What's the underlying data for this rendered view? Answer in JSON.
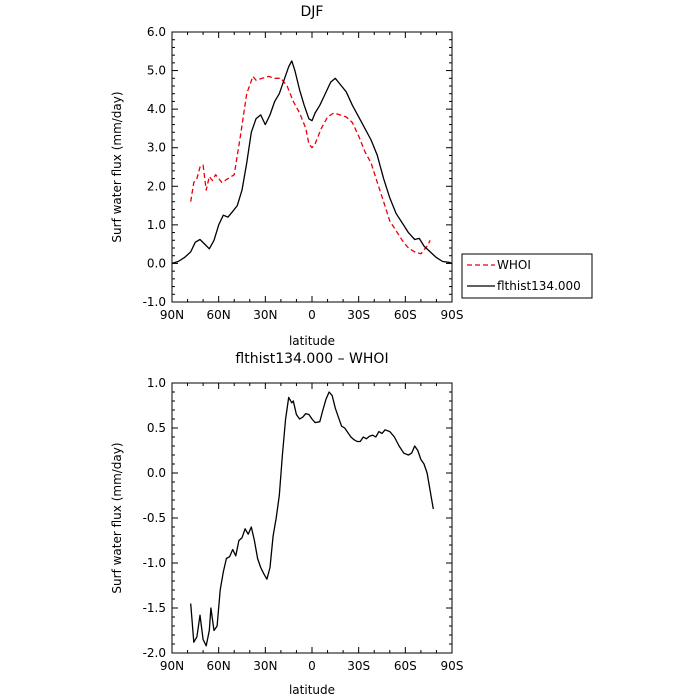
{
  "chart_data": [
    {
      "type": "line",
      "title": "DJF",
      "xlabel": "latitude",
      "ylabel": "Surf water flux (mm/day)",
      "x_ticks": [
        90,
        60,
        30,
        0,
        -30,
        -60,
        -90
      ],
      "x_tick_labels": [
        "90N",
        "60N",
        "30N",
        "0",
        "30S",
        "60S",
        "90S"
      ],
      "y_ticks": [
        -1.0,
        0.0,
        1.0,
        2.0,
        3.0,
        4.0,
        5.0,
        6.0
      ],
      "y_tick_labels": [
        "-1.0",
        "0.0",
        "1.0",
        "2.0",
        "3.0",
        "4.0",
        "5.0",
        "6.0"
      ],
      "xlim": [
        90,
        -90
      ],
      "ylim": [
        -1,
        6
      ],
      "legend": "right",
      "series": [
        {
          "name": "WHOI",
          "color": "#e8000b",
          "dash": "dashed",
          "points": [
            [
              78,
              1.6
            ],
            [
              76,
              2.1
            ],
            [
              74,
              2.2
            ],
            [
              72,
              2.5
            ],
            [
              70,
              2.55
            ],
            [
              68,
              1.9
            ],
            [
              66,
              2.25
            ],
            [
              64,
              2.15
            ],
            [
              62,
              2.3
            ],
            [
              58,
              2.1
            ],
            [
              54,
              2.2
            ],
            [
              50,
              2.3
            ],
            [
              46,
              3.3
            ],
            [
              42,
              4.4
            ],
            [
              38,
              4.85
            ],
            [
              36,
              4.75
            ],
            [
              32,
              4.8
            ],
            [
              28,
              4.85
            ],
            [
              24,
              4.8
            ],
            [
              20,
              4.8
            ],
            [
              16,
              4.6
            ],
            [
              12,
              4.2
            ],
            [
              8,
              3.9
            ],
            [
              4,
              3.5
            ],
            [
              2,
              3.1
            ],
            [
              0,
              3.0
            ],
            [
              -2,
              3.1
            ],
            [
              -6,
              3.5
            ],
            [
              -10,
              3.8
            ],
            [
              -14,
              3.9
            ],
            [
              -18,
              3.85
            ],
            [
              -22,
              3.8
            ],
            [
              -26,
              3.65
            ],
            [
              -30,
              3.3
            ],
            [
              -34,
              2.9
            ],
            [
              -38,
              2.6
            ],
            [
              -42,
              2.1
            ],
            [
              -46,
              1.6
            ],
            [
              -50,
              1.1
            ],
            [
              -54,
              0.85
            ],
            [
              -58,
              0.6
            ],
            [
              -62,
              0.4
            ],
            [
              -66,
              0.3
            ],
            [
              -70,
              0.25
            ],
            [
              -74,
              0.45
            ],
            [
              -76,
              0.6
            ]
          ]
        },
        {
          "name": "flthist134.000",
          "color": "#000000",
          "dash": "solid",
          "points": [
            [
              90,
              0.0
            ],
            [
              86,
              0.05
            ],
            [
              82,
              0.15
            ],
            [
              78,
              0.3
            ],
            [
              75,
              0.55
            ],
            [
              72,
              0.62
            ],
            [
              69,
              0.5
            ],
            [
              66,
              0.38
            ],
            [
              63,
              0.6
            ],
            [
              60,
              1.0
            ],
            [
              57,
              1.25
            ],
            [
              54,
              1.2
            ],
            [
              51,
              1.35
            ],
            [
              48,
              1.5
            ],
            [
              45,
              1.9
            ],
            [
              42,
              2.6
            ],
            [
              39,
              3.4
            ],
            [
              36,
              3.75
            ],
            [
              33,
              3.85
            ],
            [
              30,
              3.6
            ],
            [
              27,
              3.85
            ],
            [
              24,
              4.2
            ],
            [
              21,
              4.4
            ],
            [
              18,
              4.75
            ],
            [
              15,
              5.1
            ],
            [
              13,
              5.25
            ],
            [
              11,
              5.0
            ],
            [
              8,
              4.5
            ],
            [
              5,
              4.1
            ],
            [
              2,
              3.75
            ],
            [
              0,
              3.7
            ],
            [
              -2,
              3.9
            ],
            [
              -5,
              4.1
            ],
            [
              -8,
              4.35
            ],
            [
              -12,
              4.7
            ],
            [
              -15,
              4.8
            ],
            [
              -18,
              4.65
            ],
            [
              -22,
              4.45
            ],
            [
              -26,
              4.1
            ],
            [
              -30,
              3.8
            ],
            [
              -34,
              3.5
            ],
            [
              -38,
              3.2
            ],
            [
              -42,
              2.8
            ],
            [
              -46,
              2.2
            ],
            [
              -50,
              1.7
            ],
            [
              -54,
              1.3
            ],
            [
              -58,
              1.05
            ],
            [
              -62,
              0.8
            ],
            [
              -66,
              0.62
            ],
            [
              -69,
              0.65
            ],
            [
              -72,
              0.45
            ],
            [
              -76,
              0.3
            ],
            [
              -80,
              0.15
            ],
            [
              -84,
              0.05
            ],
            [
              -88,
              0.03
            ],
            [
              -90,
              0.0
            ]
          ]
        }
      ]
    },
    {
      "type": "line",
      "title": "flthist134.000 – WHOI",
      "xlabel": "latitude",
      "ylabel": "Surf water flux (mm/day)",
      "x_ticks": [
        90,
        60,
        30,
        0,
        -30,
        -60,
        -90
      ],
      "x_tick_labels": [
        "90N",
        "60N",
        "30N",
        "0",
        "30S",
        "60S",
        "90S"
      ],
      "y_ticks": [
        -2.0,
        -1.5,
        -1.0,
        -0.5,
        0.0,
        0.5,
        1.0
      ],
      "y_tick_labels": [
        "-2.0",
        "-1.5",
        "-1.0",
        "-0.5",
        "0.0",
        "0.5",
        "1.0"
      ],
      "xlim": [
        90,
        -90
      ],
      "ylim": [
        -2,
        1
      ],
      "series": [
        {
          "color": "#000000",
          "dash": "solid",
          "points": [
            [
              78,
              -1.45
            ],
            [
              76,
              -1.88
            ],
            [
              74,
              -1.82
            ],
            [
              72,
              -1.58
            ],
            [
              70,
              -1.85
            ],
            [
              68,
              -1.92
            ],
            [
              66,
              -1.75
            ],
            [
              65,
              -1.5
            ],
            [
              63,
              -1.75
            ],
            [
              61,
              -1.7
            ],
            [
              59,
              -1.3
            ],
            [
              57,
              -1.1
            ],
            [
              55,
              -0.95
            ],
            [
              53,
              -0.93
            ],
            [
              51,
              -0.85
            ],
            [
              49,
              -0.92
            ],
            [
              47,
              -0.75
            ],
            [
              45,
              -0.72
            ],
            [
              43,
              -0.62
            ],
            [
              41,
              -0.68
            ],
            [
              39,
              -0.6
            ],
            [
              37,
              -0.75
            ],
            [
              35,
              -0.95
            ],
            [
              33,
              -1.05
            ],
            [
              31,
              -1.12
            ],
            [
              29,
              -1.18
            ],
            [
              27,
              -1.05
            ],
            [
              25,
              -0.7
            ],
            [
              23,
              -0.5
            ],
            [
              21,
              -0.25
            ],
            [
              19,
              0.2
            ],
            [
              17,
              0.6
            ],
            [
              15,
              0.84
            ],
            [
              13,
              0.78
            ],
            [
              12,
              0.8
            ],
            [
              10,
              0.65
            ],
            [
              8,
              0.6
            ],
            [
              6,
              0.62
            ],
            [
              4,
              0.66
            ],
            [
              2,
              0.65
            ],
            [
              0,
              0.6
            ],
            [
              -2,
              0.56
            ],
            [
              -5,
              0.57
            ],
            [
              -7,
              0.7
            ],
            [
              -9,
              0.82
            ],
            [
              -11,
              0.9
            ],
            [
              -13,
              0.86
            ],
            [
              -15,
              0.72
            ],
            [
              -17,
              0.62
            ],
            [
              -19,
              0.52
            ],
            [
              -21,
              0.5
            ],
            [
              -23,
              0.45
            ],
            [
              -25,
              0.4
            ],
            [
              -27,
              0.37
            ],
            [
              -29,
              0.35
            ],
            [
              -31,
              0.35
            ],
            [
              -33,
              0.4
            ],
            [
              -35,
              0.38
            ],
            [
              -37,
              0.41
            ],
            [
              -39,
              0.42
            ],
            [
              -41,
              0.4
            ],
            [
              -43,
              0.46
            ],
            [
              -45,
              0.44
            ],
            [
              -47,
              0.48
            ],
            [
              -50,
              0.46
            ],
            [
              -53,
              0.4
            ],
            [
              -56,
              0.3
            ],
            [
              -59,
              0.22
            ],
            [
              -62,
              0.2
            ],
            [
              -64,
              0.22
            ],
            [
              -66,
              0.3
            ],
            [
              -68,
              0.25
            ],
            [
              -70,
              0.15
            ],
            [
              -72,
              0.1
            ],
            [
              -74,
              0.0
            ],
            [
              -76,
              -0.2
            ],
            [
              -78,
              -0.4
            ]
          ]
        }
      ]
    }
  ]
}
